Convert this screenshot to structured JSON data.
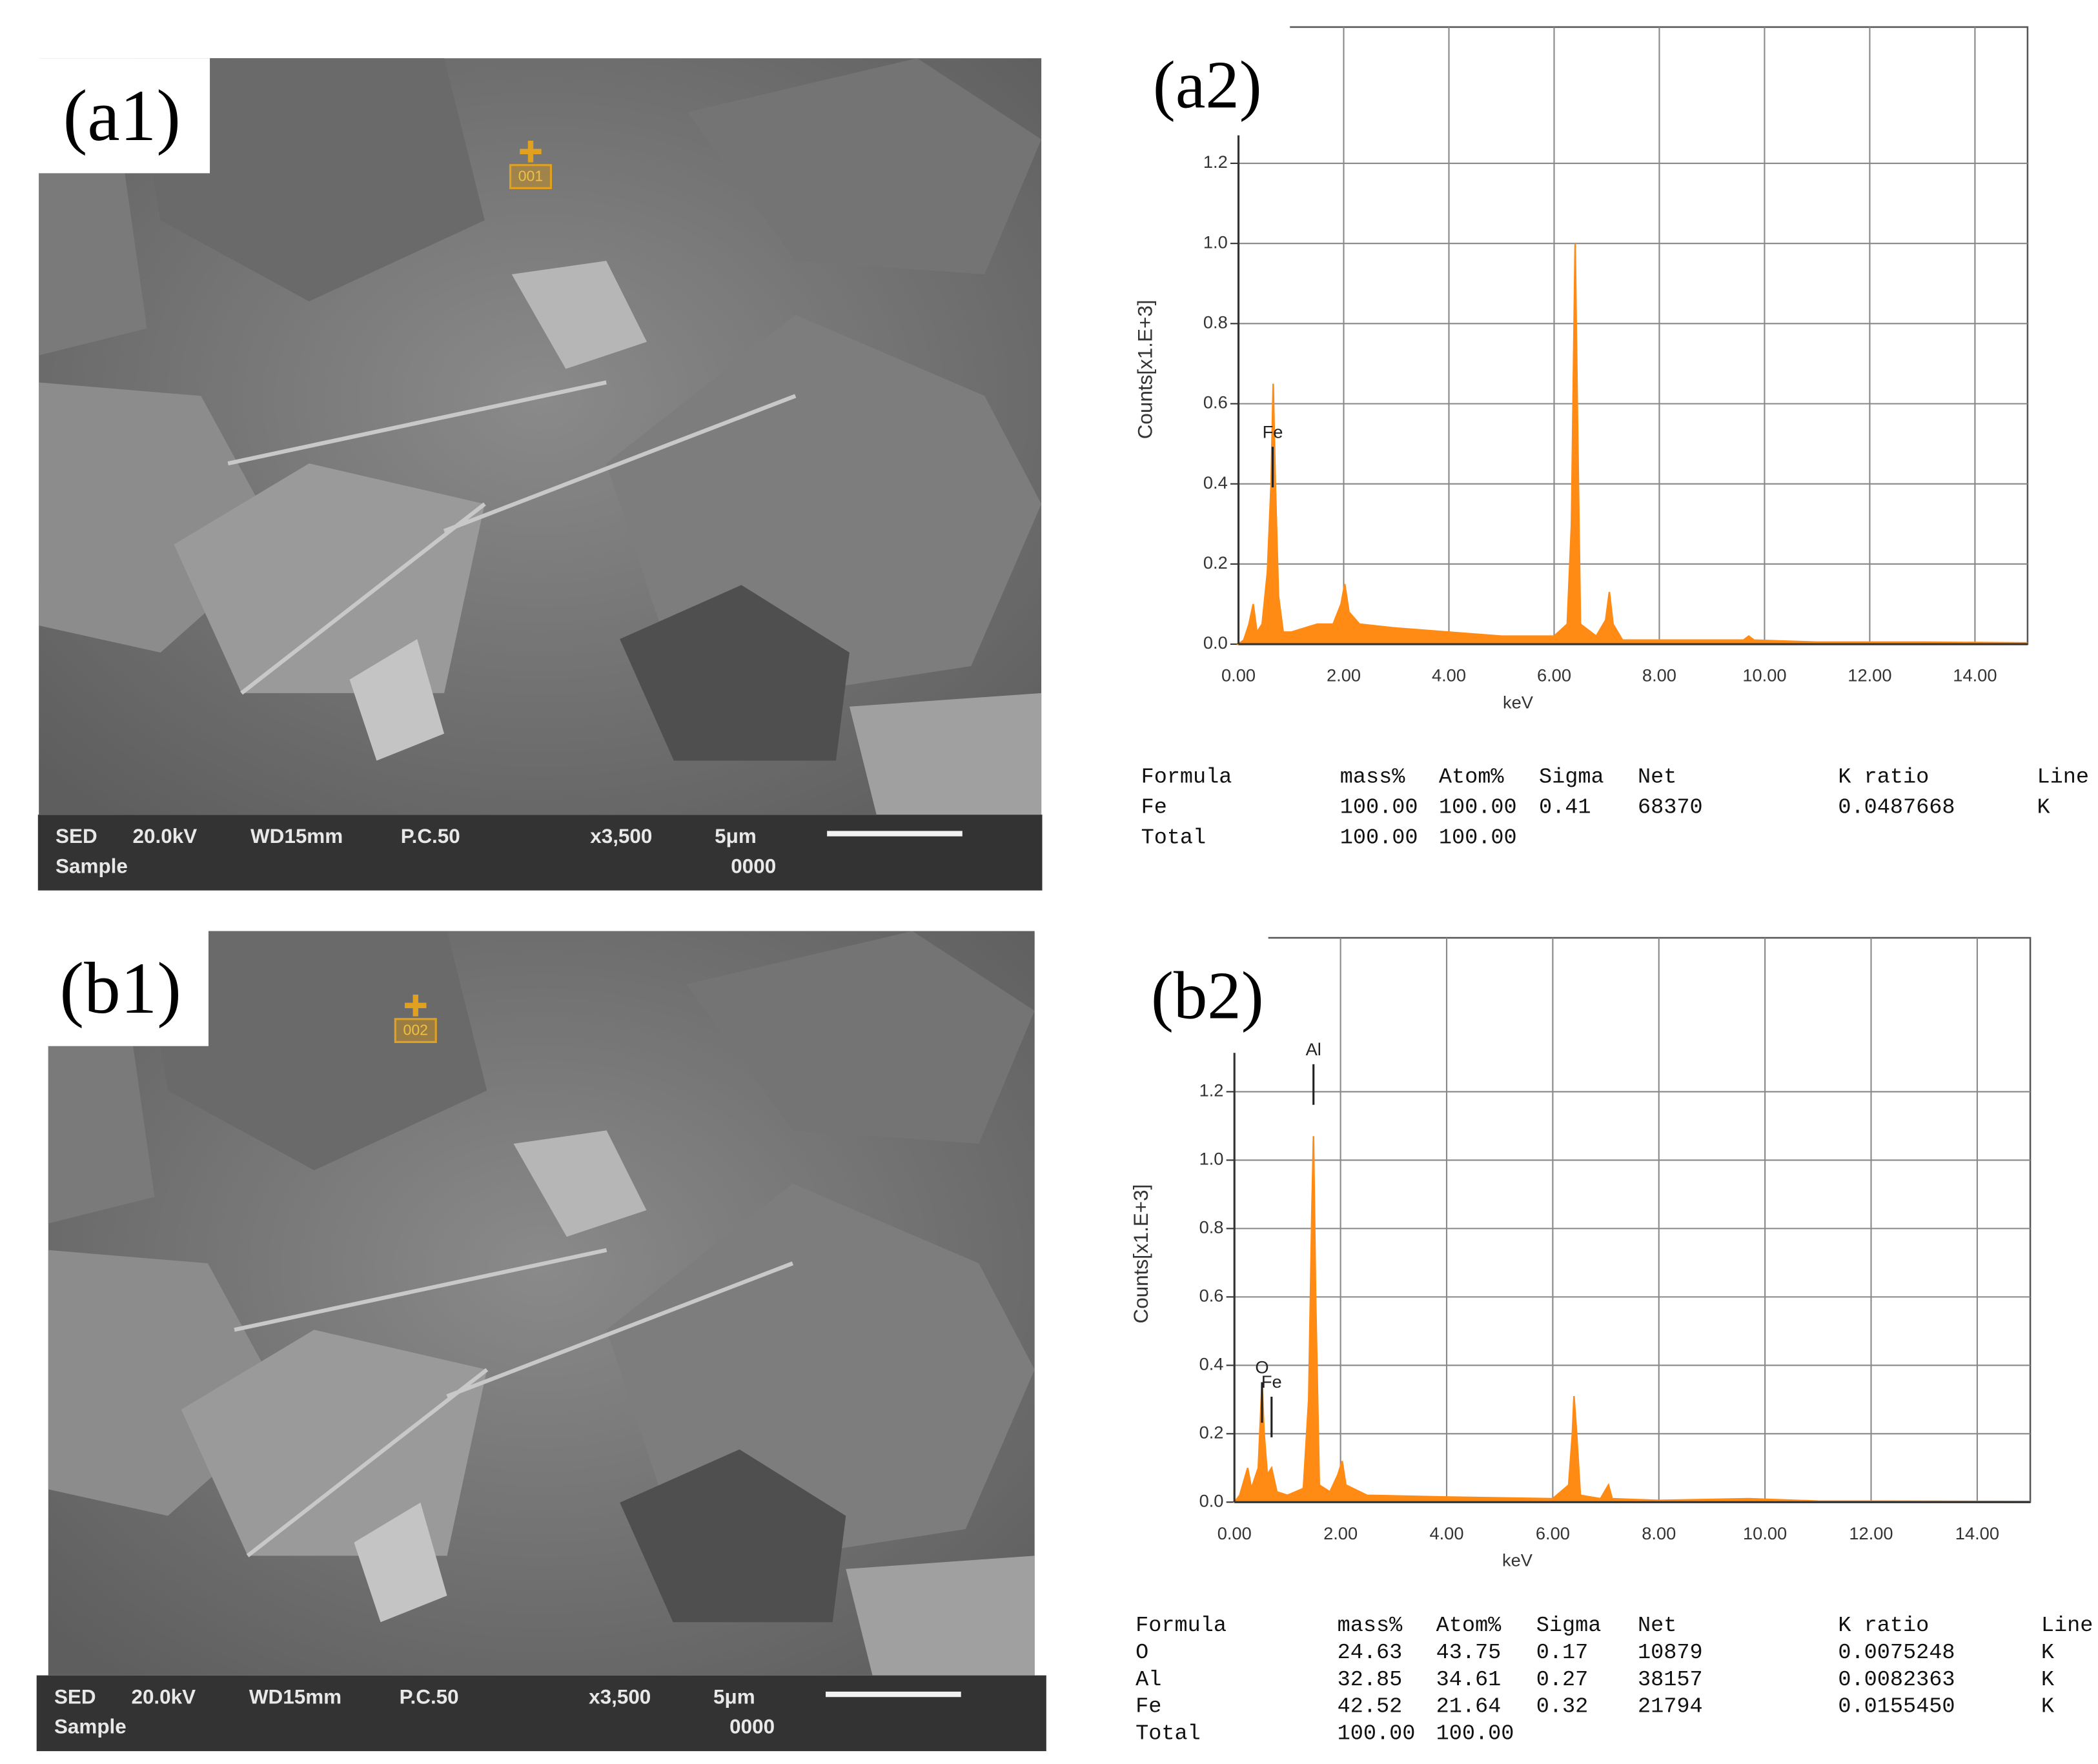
{
  "sem_images": [
    {
      "label": "(a1)",
      "marker": "001",
      "info": [
        "SED",
        "20.0kV",
        "WD15mm",
        "P.C.50",
        "x3,500",
        "5μm",
        "Sample",
        "0000"
      ]
    },
    {
      "label": "(b1)",
      "marker": "002",
      "info": [
        "SED",
        "20.0kV",
        "WD15mm",
        "P.C.50",
        "x3,500",
        "5μm",
        "Sample",
        "0000"
      ]
    }
  ],
  "chart_data": [
    {
      "type": "area",
      "label": "(a2)",
      "color": "#ff8a14",
      "xlabel": "keV",
      "ylabel": "Counts[x1.E+3]",
      "x": [
        0,
        0.1,
        0.2,
        0.28,
        0.35,
        0.45,
        0.55,
        0.62,
        0.66,
        0.7,
        0.76,
        0.85,
        1.0,
        1.5,
        1.8,
        1.95,
        2.02,
        2.1,
        2.3,
        3.0,
        4.0,
        5.0,
        6.0,
        6.25,
        6.33,
        6.37,
        6.4,
        6.44,
        6.5,
        6.8,
        6.98,
        7.05,
        7.12,
        7.3,
        8.0,
        9.0,
        9.6,
        9.7,
        9.8,
        11,
        13,
        15
      ],
      "values": [
        0,
        0.01,
        0.05,
        0.1,
        0.03,
        0.05,
        0.18,
        0.4,
        0.65,
        0.4,
        0.12,
        0.03,
        0.03,
        0.05,
        0.05,
        0.1,
        0.15,
        0.08,
        0.05,
        0.04,
        0.03,
        0.02,
        0.02,
        0.05,
        0.3,
        0.7,
        1.0,
        0.6,
        0.05,
        0.02,
        0.06,
        0.13,
        0.05,
        0.01,
        0.01,
        0.01,
        0.01,
        0.02,
        0.01,
        0.005,
        0.005,
        0.003
      ],
      "xlim": [
        0,
        15
      ],
      "ylim": [
        0,
        1.54
      ],
      "xticks": [
        {
          "value": 0,
          "label": "0.00"
        },
        {
          "value": 2,
          "label": "2.00"
        },
        {
          "value": 4,
          "label": "4.00"
        },
        {
          "value": 6,
          "label": "6.00"
        },
        {
          "value": 8,
          "label": "8.00"
        },
        {
          "value": 10,
          "label": "10.00"
        },
        {
          "value": 12,
          "label": "12.00"
        },
        {
          "value": 14,
          "label": "14.00"
        }
      ],
      "yticks": [
        {
          "value": 0,
          "label": "0.0"
        },
        0.2,
        0.4,
        0.6,
        0.8,
        {
          "value": 1,
          "label": "1.0"
        },
        1.2
      ],
      "grid": true,
      "annotations": [
        {
          "text": "Fe",
          "x": 0.65
        }
      ]
    },
    {
      "type": "area",
      "label": "(b2)",
      "color": "#ff8a14",
      "xlabel": "keV",
      "ylabel": "Counts[x1.E+3]",
      "x": [
        0,
        0.1,
        0.25,
        0.32,
        0.45,
        0.52,
        0.56,
        0.62,
        0.7,
        0.8,
        1.0,
        1.3,
        1.4,
        1.46,
        1.49,
        1.53,
        1.6,
        1.8,
        1.95,
        2.03,
        2.1,
        2.5,
        4,
        6,
        6.3,
        6.37,
        6.4,
        6.45,
        6.52,
        6.9,
        7.05,
        7.12,
        8,
        9.7,
        11,
        15
      ],
      "values": [
        0,
        0.02,
        0.1,
        0.04,
        0.1,
        0.35,
        0.2,
        0.08,
        0.1,
        0.03,
        0.02,
        0.04,
        0.3,
        0.85,
        1.07,
        0.6,
        0.05,
        0.03,
        0.08,
        0.12,
        0.05,
        0.02,
        0.015,
        0.01,
        0.05,
        0.2,
        0.31,
        0.2,
        0.02,
        0.01,
        0.05,
        0.01,
        0.005,
        0.01,
        0.003,
        0.002
      ],
      "xlim": [
        0,
        15
      ],
      "ylim": [
        0,
        1.65
      ],
      "xticks": [
        {
          "value": 0,
          "label": "0.00"
        },
        {
          "value": 2,
          "label": "2.00"
        },
        {
          "value": 4,
          "label": "4.00"
        },
        {
          "value": 6,
          "label": "6.00"
        },
        {
          "value": 8,
          "label": "8.00"
        },
        {
          "value": 10,
          "label": "10.00"
        },
        {
          "value": 12,
          "label": "12.00"
        },
        {
          "value": 14,
          "label": "14.00"
        }
      ],
      "yticks": [
        {
          "value": 0,
          "label": "0.0"
        },
        0.2,
        0.4,
        0.6,
        0.8,
        {
          "value": 1,
          "label": "1.0"
        },
        1.2
      ],
      "grid": true,
      "annotations": [
        {
          "text": "Al",
          "x": 1.49
        },
        {
          "text": "O",
          "x": 0.52
        },
        {
          "text": "Fe",
          "x": 0.7
        }
      ]
    }
  ],
  "tables": [
    {
      "header": [
        "Formula",
        "mass%",
        "Atom%",
        "Sigma",
        "Net",
        "K ratio",
        "Line"
      ],
      "rows": [
        [
          "Fe",
          "100.00",
          "100.00",
          "0.41",
          "68370",
          "0.0487668",
          "K"
        ],
        [
          "Total",
          "100.00",
          "100.00"
        ]
      ]
    },
    {
      "header": [
        "Formula",
        "mass%",
        "Atom%",
        "Sigma",
        "Net",
        "K ratio",
        "Line"
      ],
      "rows": [
        [
          "O",
          "24.63",
          "43.75",
          "0.17",
          "10879",
          "0.0075248",
          "K"
        ],
        [
          "Al",
          "32.85",
          "34.61",
          "0.27",
          "38157",
          "0.0082363",
          "K"
        ],
        [
          "Fe",
          "42.52",
          "21.64",
          "0.32",
          "21794",
          "0.0155450",
          "K"
        ],
        [
          "Total",
          "100.00",
          "100.00"
        ]
      ]
    }
  ]
}
